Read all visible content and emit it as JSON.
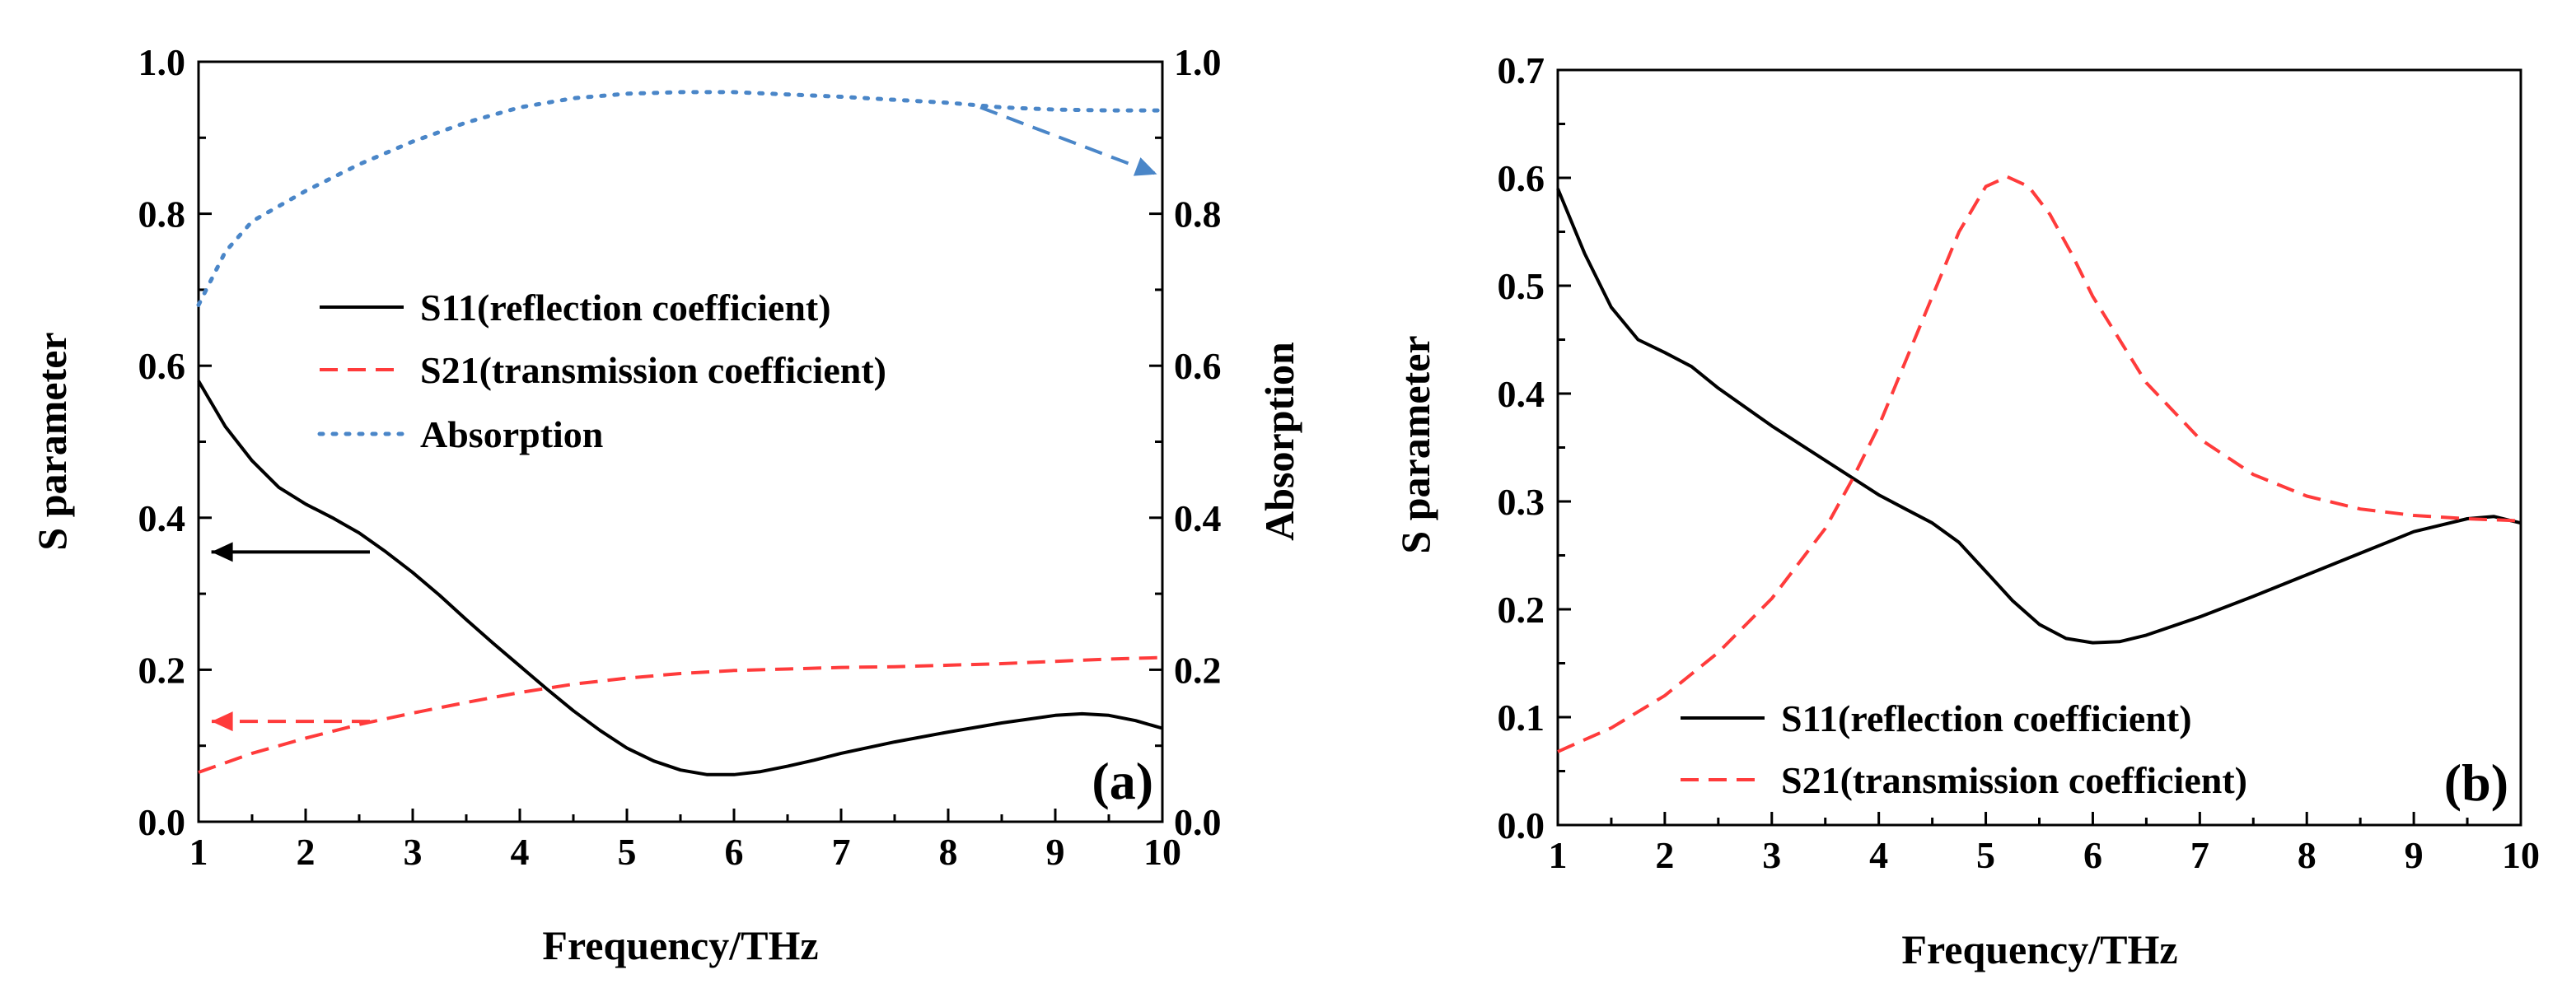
{
  "chart_data": [
    {
      "type": "line",
      "panel_label": "(a)",
      "xlabel": "Frequency/THz",
      "ylabel": "S parameter",
      "ylabel_right": "Absorption",
      "xlim": [
        1,
        10
      ],
      "ylim": [
        0,
        1
      ],
      "ylim_right": [
        0,
        1
      ],
      "xticks": [
        1,
        2,
        3,
        4,
        5,
        6,
        7,
        8,
        9,
        10
      ],
      "xtick_labels": [
        "1",
        "2",
        "3",
        "4",
        "5",
        "6",
        "7",
        "8",
        "9",
        "10"
      ],
      "yticks": [
        0,
        0.2,
        0.4,
        0.6,
        0.8,
        1
      ],
      "ytick_labels": [
        "0.0",
        "0.2",
        "0.4",
        "0.6",
        "0.8",
        "1.0"
      ],
      "ytick_labels_right": [
        "0.0",
        "0.2",
        "0.4",
        "0.6",
        "0.8",
        "1.0"
      ],
      "grid": false,
      "legend_position": "center-left",
      "colors": {
        "s11": "#000000",
        "s21": "#ff3b3b",
        "absorption": "#4a86c8"
      },
      "series": [
        {
          "key": "s11",
          "name": "S11(reflection coefficient)",
          "style": "solid",
          "x": [
            1.0,
            1.25,
            1.5,
            1.75,
            2.0,
            2.25,
            2.5,
            2.75,
            3.0,
            3.25,
            3.5,
            3.75,
            4.0,
            4.25,
            4.5,
            4.75,
            5.0,
            5.25,
            5.5,
            5.75,
            6.0,
            6.25,
            6.5,
            6.75,
            7.0,
            7.5,
            8.0,
            8.5,
            9.0,
            9.25,
            9.5,
            9.75,
            10.0
          ],
          "y": [
            0.58,
            0.52,
            0.475,
            0.44,
            0.418,
            0.4,
            0.38,
            0.355,
            0.328,
            0.298,
            0.266,
            0.235,
            0.205,
            0.175,
            0.146,
            0.12,
            0.097,
            0.08,
            0.068,
            0.062,
            0.062,
            0.066,
            0.073,
            0.081,
            0.09,
            0.105,
            0.118,
            0.13,
            0.14,
            0.142,
            0.14,
            0.133,
            0.123
          ]
        },
        {
          "key": "s21",
          "name": "S21(transmission coefficient)",
          "style": "dashed",
          "x": [
            1.0,
            1.5,
            2.0,
            2.5,
            3.0,
            3.5,
            4.0,
            4.5,
            5.0,
            5.5,
            6.0,
            6.5,
            7.0,
            7.5,
            8.0,
            8.5,
            9.0,
            9.5,
            10.0
          ],
          "y": [
            0.065,
            0.09,
            0.11,
            0.128,
            0.143,
            0.157,
            0.17,
            0.181,
            0.189,
            0.195,
            0.199,
            0.201,
            0.203,
            0.204,
            0.206,
            0.208,
            0.211,
            0.214,
            0.216
          ]
        },
        {
          "key": "absorption",
          "name": "Absorption",
          "style": "dotted",
          "axis": "right",
          "x": [
            1.0,
            1.25,
            1.5,
            2.0,
            2.5,
            3.0,
            3.5,
            4.0,
            4.5,
            5.0,
            5.5,
            6.0,
            6.5,
            7.0,
            7.5,
            8.0,
            8.5,
            9.0,
            9.5,
            10.0
          ],
          "y": [
            0.68,
            0.75,
            0.79,
            0.83,
            0.865,
            0.895,
            0.92,
            0.94,
            0.952,
            0.958,
            0.96,
            0.96,
            0.957,
            0.954,
            0.95,
            0.946,
            0.94,
            0.937,
            0.936,
            0.936
          ]
        }
      ],
      "annotations": [
        {
          "key": "arrow-s11",
          "color": "#000000",
          "style": "solid",
          "from": [
            2.6,
            0.355
          ],
          "to": [
            1.12,
            0.355
          ]
        },
        {
          "key": "arrow-s21",
          "color": "#ff3b3b",
          "style": "dashed",
          "from": [
            2.6,
            0.132
          ],
          "to": [
            1.12,
            0.132
          ]
        },
        {
          "key": "arrow-absorption",
          "color": "#4a86c8",
          "style": "dashed",
          "from": [
            8.3,
            0.94
          ],
          "to": [
            9.95,
            0.852
          ]
        }
      ]
    },
    {
      "type": "line",
      "panel_label": "(b)",
      "xlabel": "Frequency/THz",
      "ylabel": "S parameter",
      "xlim": [
        1,
        10
      ],
      "ylim": [
        0,
        0.7
      ],
      "xticks": [
        1,
        2,
        3,
        4,
        5,
        6,
        7,
        8,
        9,
        10
      ],
      "xtick_labels": [
        "1",
        "2",
        "3",
        "4",
        "5",
        "6",
        "7",
        "8",
        "9",
        "10"
      ],
      "yticks": [
        0,
        0.1,
        0.2,
        0.3,
        0.4,
        0.5,
        0.6,
        0.7
      ],
      "ytick_labels": [
        "0.0",
        "0.1",
        "0.2",
        "0.3",
        "0.4",
        "0.5",
        "0.6",
        "0.7"
      ],
      "grid": false,
      "legend_position": "bottom-center",
      "colors": {
        "s11": "#000000",
        "s21": "#ff3b3b"
      },
      "series": [
        {
          "key": "s11",
          "name": "S11(reflection coefficient)",
          "style": "solid",
          "x": [
            1.0,
            1.25,
            1.5,
            1.75,
            2.0,
            2.25,
            2.5,
            3.0,
            3.5,
            4.0,
            4.25,
            4.5,
            4.75,
            5.0,
            5.25,
            5.5,
            5.75,
            6.0,
            6.25,
            6.5,
            7.0,
            7.5,
            8.0,
            8.5,
            9.0,
            9.5,
            9.75,
            10.0
          ],
          "y": [
            0.59,
            0.53,
            0.48,
            0.45,
            0.438,
            0.425,
            0.405,
            0.37,
            0.338,
            0.306,
            0.293,
            0.28,
            0.262,
            0.235,
            0.208,
            0.186,
            0.173,
            0.169,
            0.17,
            0.176,
            0.193,
            0.212,
            0.232,
            0.252,
            0.272,
            0.284,
            0.286,
            0.28
          ]
        },
        {
          "key": "s21",
          "name": "S21(transmission coefficient)",
          "style": "dashed",
          "x": [
            1.0,
            1.5,
            2.0,
            2.5,
            3.0,
            3.5,
            3.75,
            4.0,
            4.25,
            4.5,
            4.75,
            5.0,
            5.2,
            5.4,
            5.6,
            5.8,
            6.0,
            6.5,
            7.0,
            7.5,
            8.0,
            8.5,
            9.0,
            9.5,
            10.0
          ],
          "y": [
            0.068,
            0.09,
            0.12,
            0.16,
            0.21,
            0.275,
            0.32,
            0.37,
            0.43,
            0.49,
            0.55,
            0.592,
            0.601,
            0.592,
            0.566,
            0.53,
            0.49,
            0.41,
            0.358,
            0.325,
            0.305,
            0.293,
            0.287,
            0.284,
            0.282
          ]
        }
      ]
    }
  ]
}
